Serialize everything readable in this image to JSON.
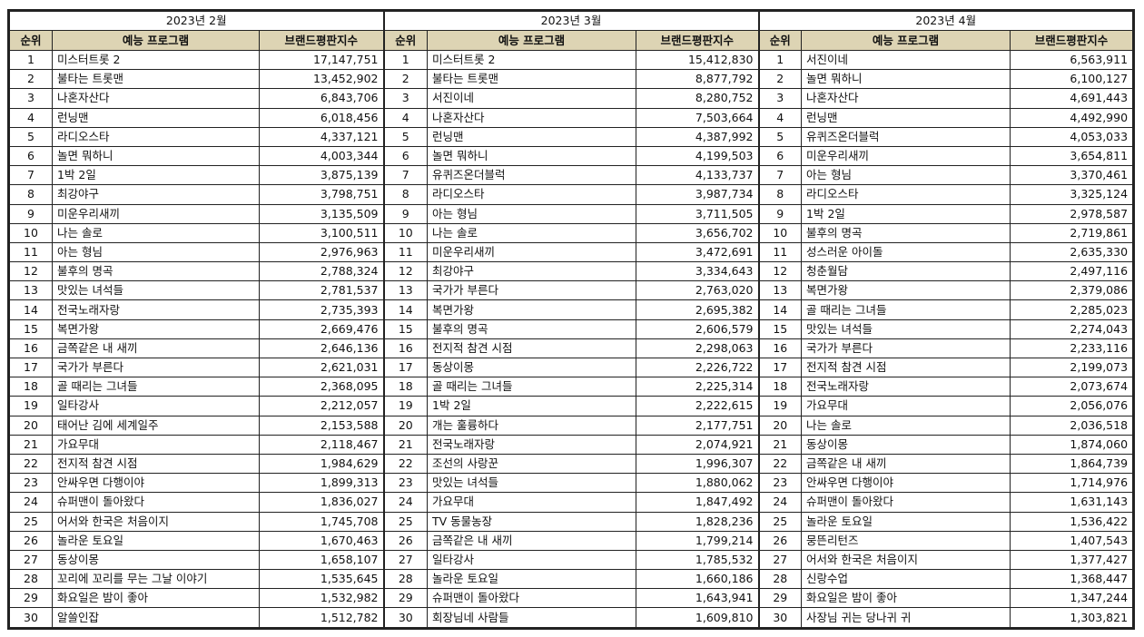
{
  "headers": {
    "rank": "순위",
    "program": "예능 프로그램",
    "index": "브랜드평판지수"
  },
  "months": [
    {
      "title": "2023년 2월",
      "rows": [
        [
          "1",
          "미스터트롯 2",
          "17,147,751"
        ],
        [
          "2",
          "불타는 트롯맨",
          "13,452,902"
        ],
        [
          "3",
          "나혼자산다",
          "6,843,706"
        ],
        [
          "4",
          "런닝맨",
          "6,018,456"
        ],
        [
          "5",
          "라디오스타",
          "4,337,121"
        ],
        [
          "6",
          "놀면 뭐하니",
          "4,003,344"
        ],
        [
          "7",
          "1박 2일",
          "3,875,139"
        ],
        [
          "8",
          "최강야구",
          "3,798,751"
        ],
        [
          "9",
          "미운우리새끼",
          "3,135,509"
        ],
        [
          "10",
          "나는 솔로",
          "3,100,511"
        ],
        [
          "11",
          "아는 형님",
          "2,976,963"
        ],
        [
          "12",
          "불후의 명곡",
          "2,788,324"
        ],
        [
          "13",
          "맛있는 녀석들",
          "2,781,537"
        ],
        [
          "14",
          "전국노래자랑",
          "2,735,393"
        ],
        [
          "15",
          "복면가왕",
          "2,669,476"
        ],
        [
          "16",
          "금쪽같은 내 새끼",
          "2,646,136"
        ],
        [
          "17",
          "국가가 부른다",
          "2,621,031"
        ],
        [
          "18",
          "골 때리는 그녀들",
          "2,368,095"
        ],
        [
          "19",
          "일타강사",
          "2,212,057"
        ],
        [
          "20",
          "태어난 김에 세계일주",
          "2,153,588"
        ],
        [
          "21",
          "가요무대",
          "2,118,467"
        ],
        [
          "22",
          "전지적 참견 시점",
          "1,984,629"
        ],
        [
          "23",
          "안싸우면 다행이야",
          "1,899,313"
        ],
        [
          "24",
          "슈퍼맨이 돌아왔다",
          "1,836,027"
        ],
        [
          "25",
          "어서와 한국은 처음이지",
          "1,745,708"
        ],
        [
          "26",
          "놀라운 토요일",
          "1,670,463"
        ],
        [
          "27",
          "동상이몽",
          "1,658,107"
        ],
        [
          "28",
          "꼬리에 꼬리를 무는 그날 이야기",
          "1,535,645"
        ],
        [
          "29",
          "화요일은 밤이 좋아",
          "1,532,982"
        ],
        [
          "30",
          "알쓸인잡",
          "1,512,782"
        ]
      ]
    },
    {
      "title": "2023년 3월",
      "rows": [
        [
          "1",
          "미스터트롯 2",
          "15,412,830"
        ],
        [
          "2",
          "불타는 트롯맨",
          "8,877,792"
        ],
        [
          "3",
          "서진이네",
          "8,280,752"
        ],
        [
          "4",
          "나혼자산다",
          "7,503,664"
        ],
        [
          "5",
          "런닝맨",
          "4,387,992"
        ],
        [
          "6",
          "놀면 뭐하니",
          "4,199,503"
        ],
        [
          "7",
          "유퀴즈온더블럭",
          "4,133,737"
        ],
        [
          "8",
          "라디오스타",
          "3,987,734"
        ],
        [
          "9",
          "아는 형님",
          "3,711,505"
        ],
        [
          "10",
          "나는 솔로",
          "3,656,702"
        ],
        [
          "11",
          "미운우리새끼",
          "3,472,691"
        ],
        [
          "12",
          "최강야구",
          "3,334,643"
        ],
        [
          "13",
          "국가가 부른다",
          "2,763,020"
        ],
        [
          "14",
          "복면가왕",
          "2,695,382"
        ],
        [
          "15",
          "불후의 명곡",
          "2,606,579"
        ],
        [
          "16",
          "전지적 참견 시점",
          "2,298,063"
        ],
        [
          "17",
          "동상이몽",
          "2,226,722"
        ],
        [
          "18",
          "골 때리는 그녀들",
          "2,225,314"
        ],
        [
          "19",
          "1박 2일",
          "2,222,615"
        ],
        [
          "20",
          "개는 훌륭하다",
          "2,177,751"
        ],
        [
          "21",
          "전국노래자랑",
          "2,074,921"
        ],
        [
          "22",
          "조선의 사랑꾼",
          "1,996,307"
        ],
        [
          "23",
          "맛있는 녀석들",
          "1,880,062"
        ],
        [
          "24",
          "가요무대",
          "1,847,492"
        ],
        [
          "25",
          "TV 동물농장",
          "1,828,236"
        ],
        [
          "26",
          "금쪽같은 내 새끼",
          "1,799,214"
        ],
        [
          "27",
          "일타강사",
          "1,785,532"
        ],
        [
          "28",
          "놀라운 토요일",
          "1,660,186"
        ],
        [
          "29",
          "슈퍼맨이 돌아왔다",
          "1,643,941"
        ],
        [
          "30",
          "회장님네 사람들",
          "1,609,810"
        ]
      ]
    },
    {
      "title": "2023년 4월",
      "rows": [
        [
          "1",
          "서진이네",
          "6,563,911"
        ],
        [
          "2",
          "놀면 뭐하니",
          "6,100,127"
        ],
        [
          "3",
          "나혼자산다",
          "4,691,443"
        ],
        [
          "4",
          "런닝맨",
          "4,492,990"
        ],
        [
          "5",
          "유퀴즈온더블럭",
          "4,053,033"
        ],
        [
          "6",
          "미운우리새끼",
          "3,654,811"
        ],
        [
          "7",
          "아는 형님",
          "3,370,461"
        ],
        [
          "8",
          "라디오스타",
          "3,325,124"
        ],
        [
          "9",
          "1박 2일",
          "2,978,587"
        ],
        [
          "10",
          "불후의 명곡",
          "2,719,861"
        ],
        [
          "11",
          "성스러운 아이돌",
          "2,635,330"
        ],
        [
          "12",
          "청춘월담",
          "2,497,116"
        ],
        [
          "13",
          "복면가왕",
          "2,379,086"
        ],
        [
          "14",
          "골 때리는 그녀들",
          "2,285,023"
        ],
        [
          "15",
          "맛있는 녀석들",
          "2,274,043"
        ],
        [
          "16",
          "국가가 부른다",
          "2,233,116"
        ],
        [
          "17",
          "전지적 참견 시점",
          "2,199,073"
        ],
        [
          "18",
          "전국노래자랑",
          "2,073,674"
        ],
        [
          "19",
          "가요무대",
          "2,056,076"
        ],
        [
          "20",
          "나는 솔로",
          "2,036,518"
        ],
        [
          "21",
          "동상이몽",
          "1,874,060"
        ],
        [
          "22",
          "금쪽같은 내 새끼",
          "1,864,739"
        ],
        [
          "23",
          "안싸우면 다행이야",
          "1,714,976"
        ],
        [
          "24",
          "슈퍼맨이 돌아왔다",
          "1,631,143"
        ],
        [
          "25",
          "놀라운 토요일",
          "1,536,422"
        ],
        [
          "26",
          "뭉뜬리턴즈",
          "1,407,543"
        ],
        [
          "27",
          "어서와 한국은 처음이지",
          "1,377,427"
        ],
        [
          "28",
          "신랑수업",
          "1,368,447"
        ],
        [
          "29",
          "화요일은 밤이 좋아",
          "1,347,244"
        ],
        [
          "30",
          "사장님 귀는 당나귀 귀",
          "1,303,821"
        ]
      ]
    }
  ]
}
